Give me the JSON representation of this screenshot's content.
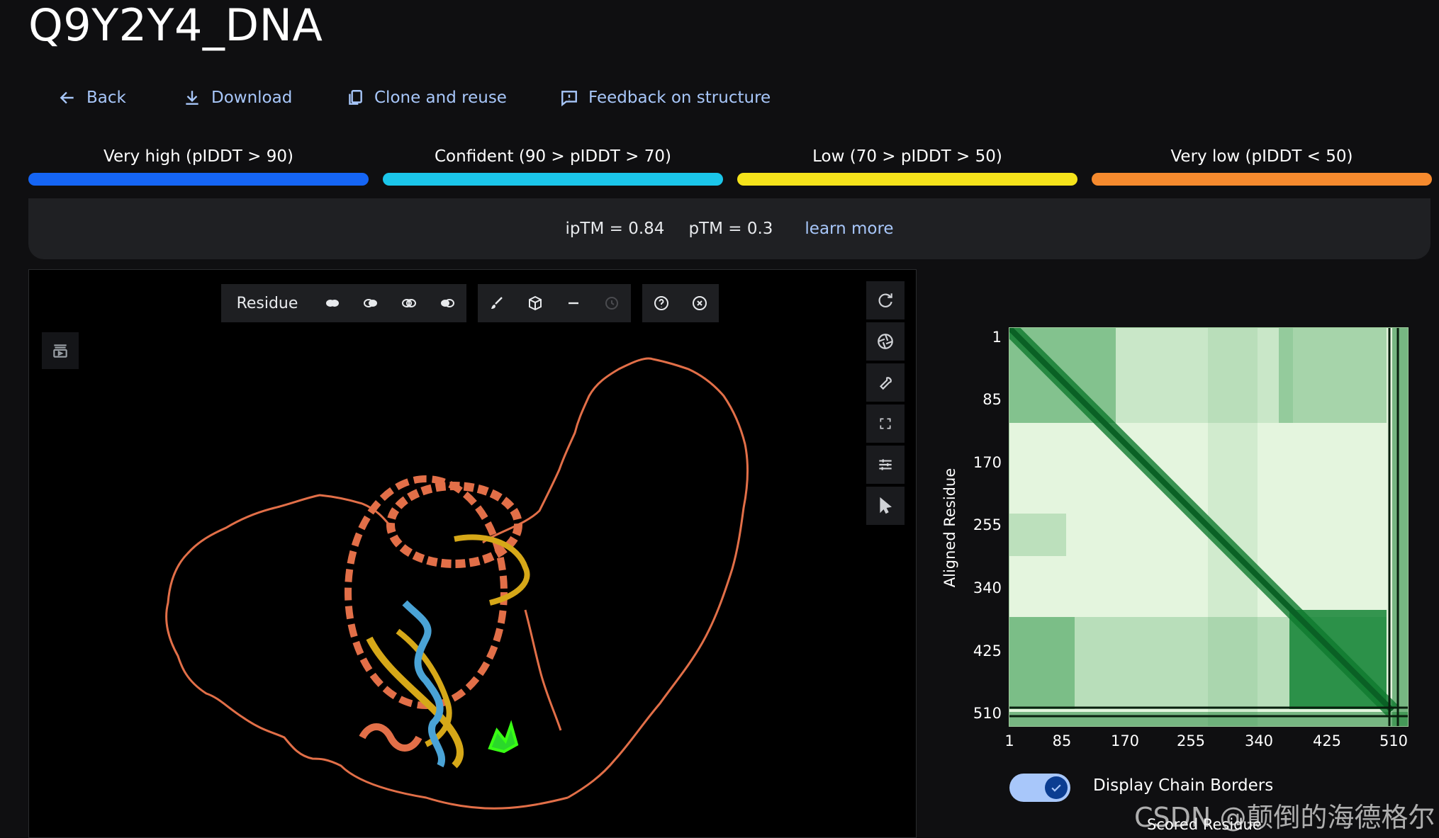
{
  "title": "Q9Y2Y4_DNA",
  "actions": {
    "back": "Back",
    "download": "Download",
    "clone": "Clone and reuse",
    "feedback": "Feedback on structure"
  },
  "plddt_legend": [
    {
      "label": "Very high (pIDDT > 90)",
      "color": "#1565f5"
    },
    {
      "label": "Confident (90 > pIDDT > 70)",
      "color": "#1bc6ea"
    },
    {
      "label": "Low (70 > pIDDT > 50)",
      "color": "#f5e31b"
    },
    {
      "label": "Very low (pIDDT < 50)",
      "color": "#f58a2e"
    }
  ],
  "metrics": {
    "iptm": "ipTM = 0.84",
    "ptm": "pTM = 0.3",
    "learn_more": "learn more"
  },
  "viewer": {
    "color_mode": "Residue",
    "toolbar_icons": [
      "representation-filled-icon",
      "representation-half-icon",
      "representation-outline-icon",
      "representation-split-icon",
      "brush-icon",
      "cube-icon",
      "minus-icon",
      "history-icon",
      "help-icon",
      "close-circle-icon"
    ],
    "side_icons": [
      "reset-icon",
      "aperture-icon",
      "wrench-icon",
      "fullscreen-icon",
      "sliders-icon",
      "cursor-icon"
    ],
    "left_icon": "layers-play-icon"
  },
  "pae": {
    "y_label": "Aligned Residue",
    "x_label": "Scored Residue",
    "ticks": [
      "1",
      "85",
      "170",
      "255",
      "340",
      "425",
      "510"
    ],
    "toggle_label": "Display Chain Borders",
    "toggle_on": true
  },
  "watermark": "CSDN @颠倒的海德格尔"
}
